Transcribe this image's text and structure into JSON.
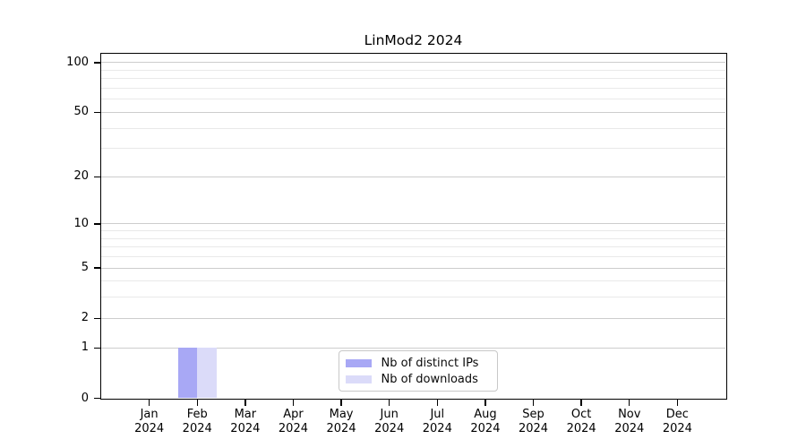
{
  "chart_data": {
    "type": "bar",
    "title": "LinMod2 2024",
    "x_axis": {
      "categories": [
        {
          "month": "Jan",
          "year": "2024"
        },
        {
          "month": "Feb",
          "year": "2024"
        },
        {
          "month": "Mar",
          "year": "2024"
        },
        {
          "month": "Apr",
          "year": "2024"
        },
        {
          "month": "May",
          "year": "2024"
        },
        {
          "month": "Jun",
          "year": "2024"
        },
        {
          "month": "Jul",
          "year": "2024"
        },
        {
          "month": "Aug",
          "year": "2024"
        },
        {
          "month": "Sep",
          "year": "2024"
        },
        {
          "month": "Oct",
          "year": "2024"
        },
        {
          "month": "Nov",
          "year": "2024"
        },
        {
          "month": "Dec",
          "year": "2024"
        }
      ]
    },
    "y_axis": {
      "scale": "log1p",
      "ticks": [
        0,
        1,
        2,
        5,
        10,
        20,
        50,
        100
      ],
      "minor_ticks": [
        3,
        4,
        6,
        7,
        8,
        9,
        30,
        40,
        60,
        70,
        80,
        90
      ],
      "ylim": [
        0,
        113
      ],
      "grid": "horizontal"
    },
    "series": [
      {
        "name": "Nb of distinct IPs",
        "color": "#a8a8f5",
        "values": [
          0,
          1,
          0,
          0,
          0,
          0,
          0,
          0,
          0,
          0,
          0,
          0
        ]
      },
      {
        "name": "Nb of downloads",
        "color": "#dbdbf9",
        "values": [
          0,
          1,
          0,
          0,
          0,
          0,
          0,
          0,
          0,
          0,
          0,
          0
        ]
      }
    ],
    "legend": {
      "position": "bottom-center-inside"
    }
  }
}
